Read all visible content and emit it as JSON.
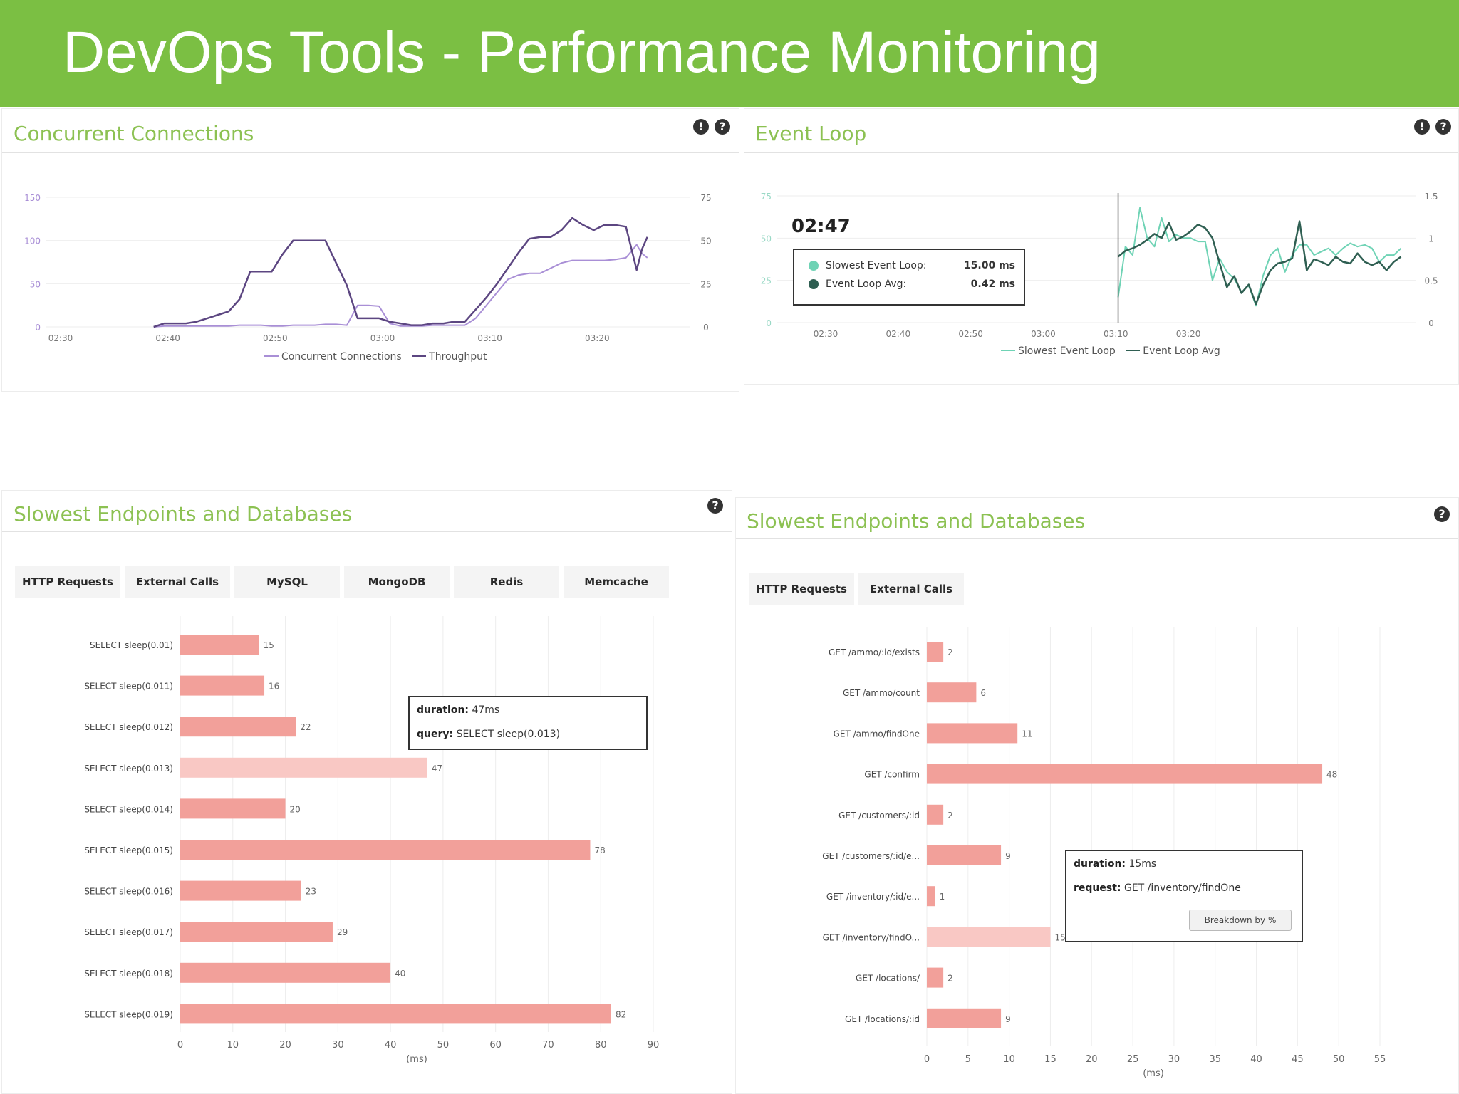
{
  "header": {
    "title": "DevOps Tools - Performance Monitoring"
  },
  "colors": {
    "accent": "#7bbf43",
    "panel_title": "#8cc152",
    "bar": "#f2a09a",
    "bar_highlight": "#f9c8c4",
    "connections_line": "#a98fd6",
    "throughput_line": "#5c4681",
    "slowest_loop": "#6fd3b5",
    "loop_avg": "#2f5f52"
  },
  "panels": {
    "concurrent": {
      "title": "Concurrent Connections",
      "icons": [
        "info-icon",
        "help-icon"
      ],
      "info_glyph": "!",
      "help_glyph": "?",
      "legend": {
        "connections": "Concurrent Connections",
        "throughput": "Throughput"
      }
    },
    "event_loop": {
      "title": "Event Loop",
      "icons": [
        "info-icon",
        "help-icon"
      ],
      "info_glyph": "!",
      "help_glyph": "?",
      "hover_time": "02:47",
      "tooltip": {
        "slowest_label": "Slowest Event Loop:",
        "slowest_value": "15.00 ms",
        "avg_label": "Event Loop Avg:",
        "avg_value": "0.42 ms"
      },
      "legend": {
        "slowest": "Slowest Event Loop",
        "avg": "Event Loop Avg"
      }
    },
    "slowest_left": {
      "title": "Slowest Endpoints and Databases",
      "help_glyph": "?",
      "tabs": [
        "HTTP Requests",
        "External Calls",
        "MySQL",
        "MongoDB",
        "Redis",
        "Memcache"
      ],
      "tooltip": {
        "duration_label": "duration:",
        "duration_value": "47ms",
        "query_label": "query:",
        "query_value": "SELECT sleep(0.013)"
      },
      "axis_unit": "(ms)"
    },
    "slowest_right": {
      "title": "Slowest Endpoints and Databases",
      "help_glyph": "?",
      "tabs": [
        "HTTP Requests",
        "External Calls"
      ],
      "tooltip": {
        "duration_label": "duration:",
        "duration_value": "15ms",
        "request_label": "request:",
        "request_value": "GET /inventory/findOne",
        "button": "Breakdown by %"
      },
      "axis_unit": "(ms)"
    }
  },
  "chart_data": [
    {
      "type": "line",
      "title": "Concurrent Connections",
      "x_ticks": [
        "02:30",
        "02:40",
        "02:50",
        "03:00",
        "03:10",
        "03:20"
      ],
      "y_left_ticks": [
        0,
        50,
        100,
        150
      ],
      "y_right_ticks": [
        0,
        25,
        50,
        75
      ],
      "ylim_left": [
        0,
        150
      ],
      "ylim_right": [
        0,
        75
      ],
      "x": [
        10,
        11,
        12,
        13,
        14,
        15,
        16,
        17,
        18,
        19,
        20,
        21,
        22,
        23,
        24,
        25,
        26,
        27,
        28,
        29,
        30,
        31,
        32,
        33,
        34,
        35,
        36,
        37,
        38,
        39,
        40,
        41,
        42,
        43,
        44,
        45,
        46,
        47,
        48,
        49,
        50,
        51,
        52,
        53,
        54,
        55,
        55.5,
        56
      ],
      "series": [
        {
          "name": "Concurrent Connections",
          "axis": "left",
          "values": [
            0,
            1,
            1,
            1,
            1,
            1,
            1,
            1,
            2,
            2,
            2,
            1,
            1,
            2,
            2,
            2,
            3,
            3,
            2,
            25,
            25,
            24,
            4,
            1,
            1,
            1,
            2,
            2,
            2,
            2,
            10,
            25,
            40,
            55,
            60,
            62,
            62,
            68,
            74,
            77,
            77,
            77,
            77,
            78,
            80,
            95,
            85,
            80
          ]
        },
        {
          "name": "Throughput",
          "axis": "right",
          "values": [
            0,
            2,
            2,
            2,
            3,
            5,
            7,
            9,
            16,
            32,
            32,
            32,
            42,
            50,
            50,
            50,
            50,
            37,
            24,
            5,
            5,
            5,
            3,
            2,
            1,
            1,
            2,
            2,
            3,
            3,
            10,
            17,
            25,
            34,
            43,
            51,
            52,
            52,
            56,
            63,
            59,
            56,
            59,
            59,
            58,
            33,
            45,
            52
          ]
        }
      ]
    },
    {
      "type": "line",
      "title": "Event Loop",
      "x_ticks": [
        "02:30",
        "02:40",
        "02:50",
        "03:00",
        "03:10",
        "03:20"
      ],
      "y_left_ticks": [
        0,
        25,
        50,
        75
      ],
      "y_right_ticks": [
        0,
        0.5,
        1,
        1.5
      ],
      "ylim_left": [
        0,
        75
      ],
      "ylim_right": [
        0,
        1.5
      ],
      "x": [
        47,
        48,
        49,
        50,
        51,
        52,
        53,
        54,
        55,
        56,
        57,
        58,
        59,
        60,
        61,
        62,
        63,
        64,
        65,
        66,
        67,
        68,
        69,
        70,
        71,
        72,
        73,
        74,
        75,
        76,
        77,
        78,
        79,
        80,
        81,
        82,
        83,
        84,
        85,
        86
      ],
      "series": [
        {
          "name": "Slowest Event Loop",
          "axis": "left",
          "values": [
            15,
            45,
            40,
            68,
            50,
            45,
            62,
            48,
            52,
            50,
            50,
            48,
            48,
            25,
            38,
            30,
            26,
            18,
            22,
            10,
            28,
            40,
            44,
            30,
            40,
            46,
            46,
            40,
            42,
            44,
            40,
            44,
            47,
            45,
            46,
            44,
            36,
            40,
            40,
            44
          ]
        },
        {
          "name": "Event Loop Avg",
          "axis": "right",
          "values": [
            0.78,
            0.85,
            0.88,
            0.92,
            0.98,
            1.05,
            1.0,
            1.18,
            0.98,
            1.02,
            1.08,
            1.16,
            1.12,
            1.0,
            0.7,
            0.42,
            0.55,
            0.35,
            0.45,
            0.22,
            0.45,
            0.62,
            0.7,
            0.72,
            0.76,
            1.2,
            0.62,
            0.75,
            0.72,
            0.68,
            0.78,
            0.72,
            0.7,
            0.82,
            0.72,
            0.68,
            0.72,
            0.62,
            0.72,
            0.78
          ]
        }
      ]
    },
    {
      "type": "bar",
      "title": "Slowest Endpoints and Databases",
      "orientation": "horizontal",
      "categories": [
        "SELECT sleep(0.01)",
        "SELECT sleep(0.011)",
        "SELECT sleep(0.012)",
        "SELECT sleep(0.013)",
        "SELECT sleep(0.014)",
        "SELECT sleep(0.015)",
        "SELECT sleep(0.016)",
        "SELECT sleep(0.017)",
        "SELECT sleep(0.018)",
        "SELECT sleep(0.019)"
      ],
      "values": [
        15,
        16,
        22,
        47,
        20,
        78,
        23,
        29,
        40,
        82
      ],
      "highlight_index": 3,
      "x_ticks": [
        0,
        10,
        20,
        30,
        40,
        50,
        60,
        70,
        80,
        90
      ],
      "xlim": [
        0,
        90
      ],
      "xlabel": "(ms)",
      "grid": true
    },
    {
      "type": "bar",
      "title": "Slowest Endpoints and Databases",
      "orientation": "horizontal",
      "categories": [
        "GET /ammo/:id/exists",
        "GET /ammo/count",
        "GET /ammo/findOne",
        "GET /confirm",
        "GET /customers/:id",
        "GET /customers/:id/e...",
        "GET /inventory/:id/e...",
        "GET /inventory/findO...",
        "GET /locations/",
        "GET /locations/:id"
      ],
      "values": [
        2,
        6,
        11,
        48,
        2,
        9,
        1,
        15,
        2,
        9
      ],
      "highlight_index": 7,
      "x_ticks": [
        0,
        5,
        10,
        15,
        20,
        25,
        30,
        35,
        40,
        45,
        50,
        55
      ],
      "xlim": [
        0,
        55
      ],
      "xlabel": "(ms)",
      "grid": true
    }
  ]
}
